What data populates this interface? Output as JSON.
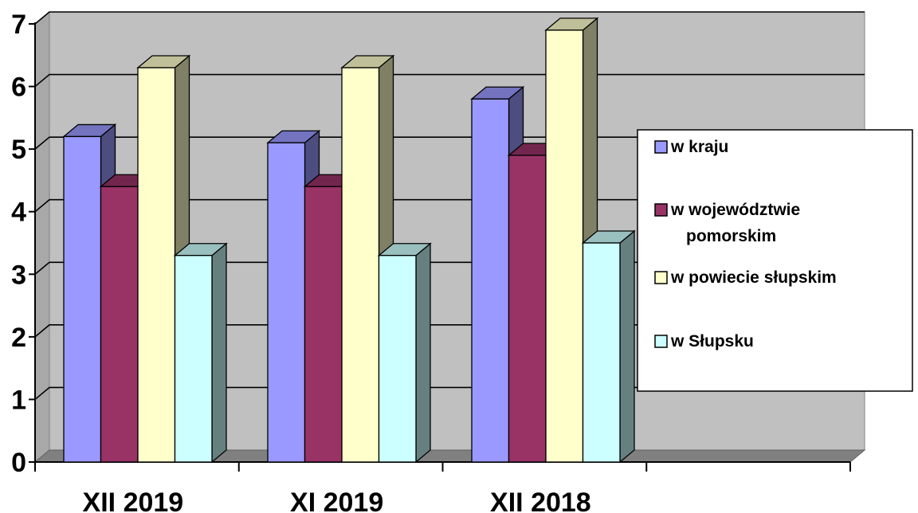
{
  "chart_data": {
    "type": "bar",
    "categories": [
      "XII 2019",
      "XI 2019",
      "XII 2018"
    ],
    "series": [
      {
        "name": "w kraju",
        "values": [
          5.2,
          5.1,
          5.8
        ],
        "color": "#9999ff"
      },
      {
        "name": "w województwie pomorskim",
        "values": [
          4.4,
          4.4,
          4.9
        ],
        "color": "#993366"
      },
      {
        "name": "w powiecie słupskim",
        "values": [
          6.3,
          6.3,
          6.9
        ],
        "color": "#ffffcc"
      },
      {
        "name": "w Słupsku",
        "values": [
          3.3,
          3.3,
          3.5
        ],
        "color": "#ccffff"
      }
    ],
    "yticks": [
      "0",
      "1",
      "2",
      "3",
      "4",
      "5",
      "6",
      "7"
    ],
    "ylim": [
      0,
      7
    ],
    "grid": true,
    "style": "3d-clustered",
    "legend": {
      "position": "right",
      "lines": [
        [
          "w kraju"
        ],
        [
          "w województwie",
          "pomorskim"
        ],
        [
          "w powiecie słupskim"
        ],
        [
          "w Słupsku"
        ]
      ]
    },
    "colors": {
      "plot_background": "#c0c0c0",
      "floor": "#808080",
      "grid": "#000000"
    }
  }
}
